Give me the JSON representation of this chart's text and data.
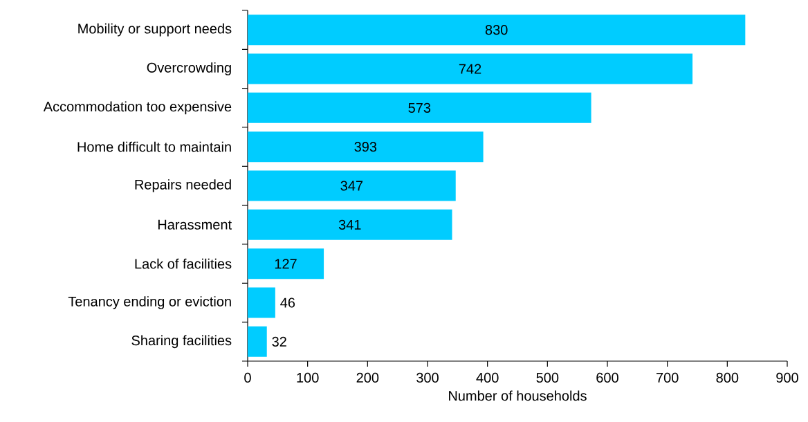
{
  "chart_data": {
    "type": "bar",
    "orientation": "horizontal",
    "xlabel": "Number of households",
    "categories": [
      "Mobility or support needs",
      "Overcrowding",
      "Accommodation too expensive",
      "Home difficult to maintain",
      "Repairs needed",
      "Harassment",
      "Lack of facilities",
      "Tenancy ending or eviction",
      "Sharing facilities"
    ],
    "values": [
      830,
      742,
      573,
      393,
      347,
      341,
      127,
      46,
      32
    ],
    "color": "#00ccff",
    "data_labels": true,
    "xlim": [
      0,
      900
    ],
    "xticks": [
      0,
      100,
      200,
      300,
      400,
      500,
      600,
      700,
      800,
      900
    ]
  }
}
